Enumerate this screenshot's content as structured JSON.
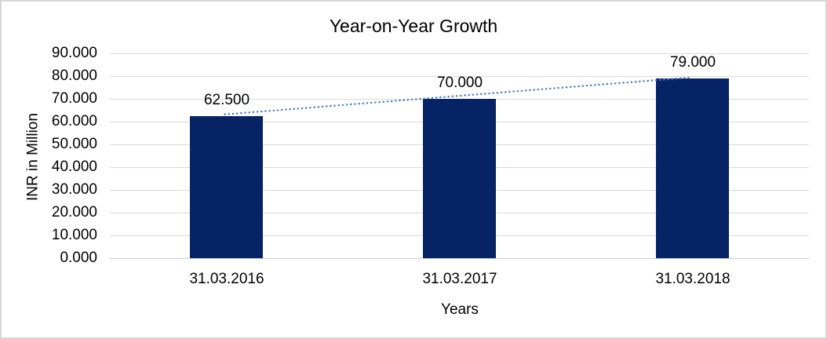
{
  "frame": {
    "background_color": "#ffffff",
    "border_color": "#d5d5d5"
  },
  "chart_data": {
    "type": "bar",
    "title": "Year-on-Year Growth",
    "xlabel": "Years",
    "ylabel": "INR in Million",
    "categories": [
      "31.03.2016",
      "31.03.2017",
      "31.03.2018"
    ],
    "values": [
      62.5,
      70.0,
      79.0
    ],
    "value_labels": [
      "62.500",
      "70.000",
      "79.000"
    ],
    "ylim": [
      0,
      90
    ],
    "ytick_step": 10,
    "ytick_labels": [
      "0.000",
      "10.000",
      "20.000",
      "30.000",
      "40.000",
      "50.000",
      "60.000",
      "70.000",
      "80.000",
      "90.000"
    ],
    "grid": true,
    "legend": "none",
    "bar_color": "#062365",
    "gridline_color": "#d9d9d9",
    "axis_line_color": "#cfcfcf",
    "text_color": "#000000",
    "trendline": {
      "type": "linear",
      "style": "dotted",
      "color": "#4a7cc7",
      "from_value": 62.5,
      "to_value": 79.0
    }
  }
}
